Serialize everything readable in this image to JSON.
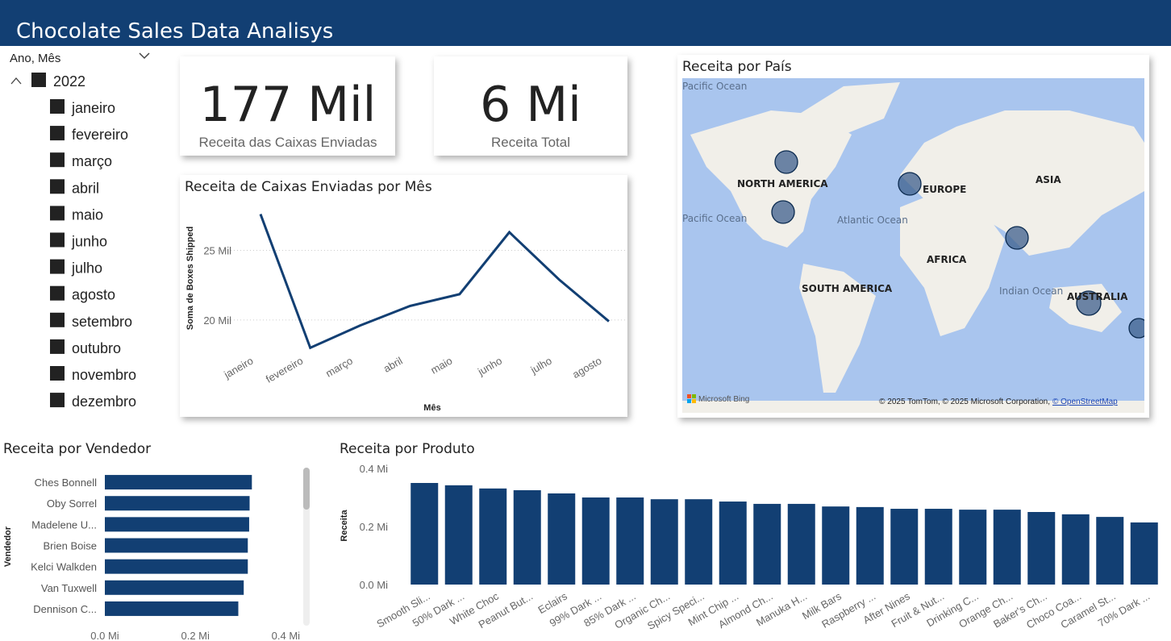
{
  "header": {
    "title": "Chocolate Sales Data Analisys"
  },
  "slicer": {
    "title": "Ano, Mês",
    "year": "2022",
    "months": [
      "janeiro",
      "fevereiro",
      "março",
      "abril",
      "maio",
      "junho",
      "julho",
      "agosto",
      "setembro",
      "outubro",
      "novembro",
      "dezembro"
    ]
  },
  "cards": [
    {
      "value": "177 Mil",
      "label": "Receita das Caixas Enviadas"
    },
    {
      "value": "6 Mi",
      "label": "Receita Total"
    }
  ],
  "map": {
    "title": "Receita por País",
    "labels": [
      "Pacific Ocean",
      "NORTH AMERICA",
      "EUROPE",
      "ASIA",
      "Atlantic Ocean",
      "Pacific Ocean",
      "AFRICA",
      "SOUTH AMERICA",
      "Indian Ocean",
      "AUSTRALIA"
    ],
    "logo": "Microsoft Bing",
    "credits": "© 2025 TomTom, © 2025 Microsoft Corporation,",
    "link": "© OpenStreetMap"
  },
  "chart_data": [
    {
      "type": "line",
      "title": "Receita de Caixas Enviadas por Mês",
      "x_label": "Mês",
      "y_label": "Soma de Boxes Shipped",
      "color": "#123f73",
      "categories": [
        "janeiro",
        "fevereiro",
        "março",
        "abril",
        "maio",
        "junho",
        "julho",
        "agosto"
      ],
      "values": [
        27600,
        18000,
        19600,
        21000,
        21850,
        26300,
        22900,
        19900
      ],
      "ylim": [
        17500,
        28500
      ],
      "yticks": [
        {
          "value": 20000,
          "label": "20 Mil"
        },
        {
          "value": 25000,
          "label": "25 Mil"
        }
      ],
      "grid": true
    },
    {
      "type": "bar",
      "horizontal": true,
      "title": "Receita por Vendedor",
      "y_label": "Vendedor",
      "color": "#123f73",
      "categories": [
        "Ches Bonnell",
        "Oby Sorrel",
        "Madelene U...",
        "Brien Boise",
        "Kelci Walkden",
        "Van Tuxwell",
        "Dennison C..."
      ],
      "values": [
        325000,
        320000,
        319000,
        316000,
        316000,
        307000,
        295000
      ],
      "xlim": [
        0,
        410000
      ],
      "xticks": [
        {
          "value": 0,
          "label": "0.0 Mi"
        },
        {
          "value": 200000,
          "label": "0.2 Mi"
        },
        {
          "value": 400000,
          "label": "0.4 Mi"
        }
      ],
      "grid": false
    },
    {
      "type": "bar",
      "title": "Receita por Produto",
      "y_label": "Receita",
      "color": "#123f73",
      "categories": [
        "Smooth Sli...",
        "50% Dark ...",
        "White Choc",
        "Peanut But...",
        "Eclairs",
        "99% Dark ...",
        "85% Dark ...",
        "Organic Ch...",
        "Spicy Speci...",
        "Mint Chip ...",
        "Almond Ch...",
        "Manuka H...",
        "Milk Bars",
        "Raspberry ...",
        "After Nines",
        "Fruit & Nut...",
        "Drinking C...",
        "Orange Ch...",
        "Baker's Ch...",
        "Choco Coa...",
        "Caramel St...",
        "70% Dark ..."
      ],
      "values": [
        350000,
        342000,
        331000,
        325000,
        314000,
        300000,
        300000,
        294000,
        294000,
        286000,
        278000,
        278000,
        269000,
        267000,
        261000,
        261000,
        258000,
        258000,
        250000,
        242000,
        233000,
        214000
      ],
      "ylim": [
        0,
        400000
      ],
      "yticks": [
        {
          "value": 0,
          "label": "0.0 Mi"
        },
        {
          "value": 200000,
          "label": "0.2 Mi"
        },
        {
          "value": 400000,
          "label": "0.4 Mi"
        }
      ],
      "grid": false
    }
  ]
}
